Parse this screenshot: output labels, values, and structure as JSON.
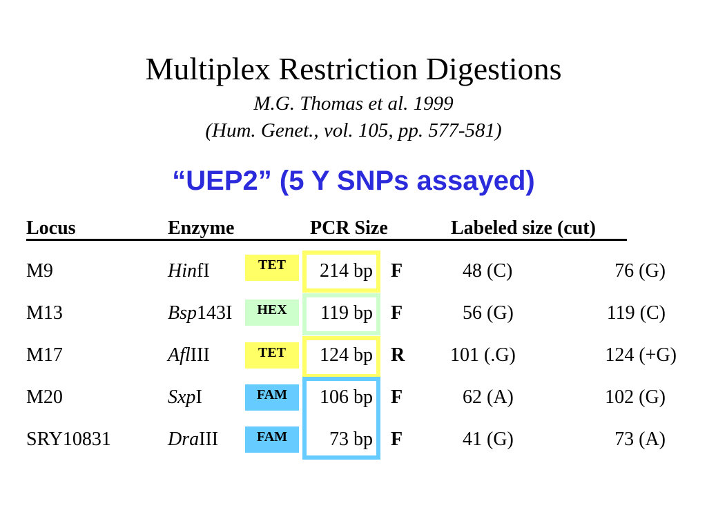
{
  "slide": {
    "title": "Multiplex Restriction Digestions",
    "citation_authors": "M.G. Thomas et al. 1999",
    "citation_journal": "(Hum. Genet., vol. 105, pp. 577-581)",
    "subtitle": "“UEP2” (5 Y SNPs assayed)"
  },
  "colors": {
    "subtitle": "#2b2bdc",
    "tet": "#ffff66",
    "hex": "#ccffcc",
    "fam": "#66ccff",
    "frame_yellow": "#ffff66",
    "frame_green": "#ccffcc",
    "frame_blue": "#66ccff"
  },
  "table": {
    "headers": {
      "locus": "Locus",
      "enzyme": "Enzyme",
      "pcr_size": "PCR Size",
      "labeled_size": "Labeled size (cut)"
    },
    "rows": [
      {
        "locus": "M9",
        "enzyme_italic": "Hin",
        "enzyme_rest": "fI",
        "label": "TET",
        "pcr": "214 bp",
        "strand": "F",
        "cut1": "48 (C)",
        "cut2": "76 (G)"
      },
      {
        "locus": "M13",
        "enzyme_italic": "Bsp",
        "enzyme_rest": "143I",
        "label": "HEX",
        "pcr": "119 bp",
        "strand": "F",
        "cut1": "56 (G)",
        "cut2": "119 (C)"
      },
      {
        "locus": "M17",
        "enzyme_italic": "Afl",
        "enzyme_rest": "III",
        "label": "TET",
        "pcr": "124 bp",
        "strand": "R",
        "cut1": "101 (.G)",
        "cut2": "124 (+G)"
      },
      {
        "locus": "M20",
        "enzyme_italic": "Sxp",
        "enzyme_rest": "I",
        "label": "FAM",
        "pcr": "106 bp",
        "strand": "F",
        "cut1": "62 (A)",
        "cut2": "102 (G)"
      },
      {
        "locus": "SRY10831",
        "enzyme_italic": "Dra",
        "enzyme_rest": "III",
        "label": "FAM",
        "pcr": "73 bp",
        "strand": "F",
        "cut1": "41 (G)",
        "cut2": "73 (A)"
      }
    ]
  }
}
